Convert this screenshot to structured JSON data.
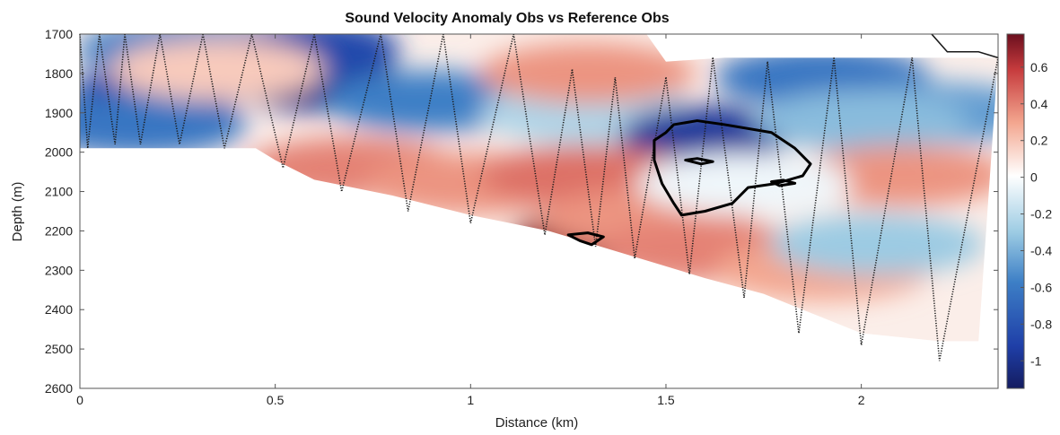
{
  "chart_data": {
    "type": "heatmap",
    "title": "Sound Velocity Anomaly Obs vs Reference Obs",
    "xlabel": "Distance (km)",
    "ylabel": "Depth (m)",
    "xlim": [
      0,
      2.35
    ],
    "ylim": [
      1700,
      2600
    ],
    "y_reversed": true,
    "x_ticks": [
      "0",
      "0.5",
      "1",
      "1.5",
      "2"
    ],
    "x_tick_values": [
      0,
      0.5,
      1,
      1.5,
      2
    ],
    "y_ticks": [
      "1700",
      "1800",
      "1900",
      "2000",
      "2100",
      "2200",
      "2300",
      "2400",
      "2500",
      "2600"
    ],
    "y_tick_values": [
      1700,
      1800,
      1900,
      2000,
      2100,
      2200,
      2300,
      2400,
      2500,
      2600
    ],
    "colorbar": {
      "colormap": "blue-white-red",
      "range": [
        -1.15,
        0.78
      ],
      "tick_values": [
        0.6,
        0.4,
        0.2,
        0,
        -0.2,
        -0.4,
        -0.6,
        -0.8,
        -1
      ],
      "tick_labels": [
        "0.6",
        "0.4",
        "0.2",
        "0",
        "-0.2",
        "-0.4",
        "-0.6",
        "-0.8",
        "-1"
      ],
      "colors": {
        "low": "#141c60",
        "mid": "#ffffff",
        "high": "#6b0f1e"
      }
    },
    "data_floor": [
      [
        0,
        1990
      ],
      [
        0.25,
        1990
      ],
      [
        0.45,
        1990
      ],
      [
        0.5,
        2020
      ],
      [
        0.6,
        2070
      ],
      [
        0.8,
        2110
      ],
      [
        1.0,
        2160
      ],
      [
        1.2,
        2200
      ],
      [
        1.4,
        2260
      ],
      [
        1.6,
        2320
      ],
      [
        1.75,
        2360
      ],
      [
        1.9,
        2420
      ],
      [
        2.0,
        2460
      ],
      [
        2.2,
        2480
      ],
      [
        2.3,
        2480
      ]
    ],
    "data_ceiling": [
      [
        0,
        1700
      ],
      [
        1.45,
        1700
      ],
      [
        1.5,
        1770
      ],
      [
        1.65,
        1760
      ],
      [
        2.0,
        1760
      ],
      [
        2.2,
        1760
      ],
      [
        2.35,
        1760
      ]
    ],
    "anomaly_features": [
      {
        "x": 0.27,
        "y": 1740,
        "value": -0.55
      },
      {
        "x": 0.6,
        "y": 1820,
        "value": -1.0
      },
      {
        "x": 0.2,
        "y": 1850,
        "value": -0.9
      },
      {
        "x": 0.6,
        "y": 1740,
        "value": -0.85
      },
      {
        "x": 0.9,
        "y": 1870,
        "value": -0.55
      },
      {
        "x": 0.15,
        "y": 1930,
        "value": -0.6
      },
      {
        "x": 1.3,
        "y": 1900,
        "value": -0.25
      },
      {
        "x": 1.6,
        "y": 1960,
        "value": -0.95
      },
      {
        "x": 1.9,
        "y": 1810,
        "value": -0.6
      },
      {
        "x": 2.2,
        "y": 1900,
        "value": -0.45
      },
      {
        "x": 2.0,
        "y": 1920,
        "value": -0.35
      },
      {
        "x": 1.3,
        "y": 1800,
        "value": 0.3
      },
      {
        "x": 0.35,
        "y": 1790,
        "value": 0.15
      },
      {
        "x": 0.7,
        "y": 2040,
        "value": 0.35
      },
      {
        "x": 1.0,
        "y": 2080,
        "value": 0.3
      },
      {
        "x": 1.3,
        "y": 2060,
        "value": 0.4
      },
      {
        "x": 1.32,
        "y": 2225,
        "value": 0.7
      },
      {
        "x": 1.45,
        "y": 2170,
        "value": 0.3
      },
      {
        "x": 1.6,
        "y": 2250,
        "value": 0.35
      },
      {
        "x": 2.1,
        "y": 2060,
        "value": 0.3
      },
      {
        "x": 1.9,
        "y": 2300,
        "value": 0.25
      },
      {
        "x": 1.7,
        "y": 2080,
        "value": -0.05
      },
      {
        "x": 2.04,
        "y": 2235,
        "value": -0.3
      }
    ],
    "contours": [
      {
        "name": "large",
        "points": [
          [
            1.52,
            1930
          ],
          [
            1.58,
            1920
          ],
          [
            1.65,
            1930
          ],
          [
            1.77,
            1950
          ],
          [
            1.83,
            1990
          ],
          [
            1.87,
            2030
          ],
          [
            1.85,
            2060
          ],
          [
            1.78,
            2080
          ],
          [
            1.71,
            2090
          ],
          [
            1.67,
            2130
          ],
          [
            1.6,
            2150
          ],
          [
            1.54,
            2160
          ],
          [
            1.52,
            2130
          ],
          [
            1.49,
            2080
          ],
          [
            1.47,
            2020
          ],
          [
            1.47,
            1970
          ],
          [
            1.5,
            1950
          ]
        ]
      },
      {
        "name": "inner-1",
        "points": [
          [
            1.55,
            2020
          ],
          [
            1.58,
            2016
          ],
          [
            1.62,
            2024
          ],
          [
            1.59,
            2030
          ]
        ]
      },
      {
        "name": "inner-2",
        "points": [
          [
            1.77,
            2075
          ],
          [
            1.8,
            2071
          ],
          [
            1.83,
            2079
          ],
          [
            1.79,
            2085
          ]
        ]
      },
      {
        "name": "bottom",
        "points": [
          [
            1.25,
            2210
          ],
          [
            1.3,
            2205
          ],
          [
            1.34,
            2215
          ],
          [
            1.31,
            2235
          ],
          [
            1.28,
            2225
          ]
        ]
      }
    ],
    "profiles": [
      {
        "x_top": 0.0,
        "y_top": 1700,
        "x_bot": 0.02,
        "y_bot": 1990
      },
      {
        "x_top": 0.05,
        "y_top": 1700,
        "x_bot": 0.09,
        "y_bot": 1980
      },
      {
        "x_top": 0.115,
        "y_top": 1700,
        "x_bot": 0.155,
        "y_bot": 1980
      },
      {
        "x_top": 0.205,
        "y_top": 1700,
        "x_bot": 0.255,
        "y_bot": 1980
      },
      {
        "x_top": 0.315,
        "y_top": 1700,
        "x_bot": 0.37,
        "y_bot": 1990
      },
      {
        "x_top": 0.44,
        "y_top": 1700,
        "x_bot": 0.52,
        "y_bot": 2040
      },
      {
        "x_top": 0.6,
        "y_top": 1700,
        "x_bot": 0.67,
        "y_bot": 2100
      },
      {
        "x_top": 0.77,
        "y_top": 1700,
        "x_bot": 0.84,
        "y_bot": 2150
      },
      {
        "x_top": 0.93,
        "y_top": 1700,
        "x_bot": 1.0,
        "y_bot": 2180
      },
      {
        "x_top": 1.11,
        "y_top": 1700,
        "x_bot": 1.19,
        "y_bot": 2210
      },
      {
        "x_top": 1.26,
        "y_top": 1790,
        "x_bot": 1.32,
        "y_bot": 2240
      },
      {
        "x_top": 1.37,
        "y_top": 1810,
        "x_bot": 1.42,
        "y_bot": 2270
      },
      {
        "x_top": 1.5,
        "y_top": 1810,
        "x_bot": 1.56,
        "y_bot": 2310
      },
      {
        "x_top": 1.62,
        "y_top": 1760,
        "x_bot": 1.7,
        "y_bot": 2370
      },
      {
        "x_top": 1.76,
        "y_top": 1770,
        "x_bot": 1.84,
        "y_bot": 2460
      },
      {
        "x_top": 1.93,
        "y_top": 1760,
        "x_bot": 2.0,
        "y_bot": 2490
      },
      {
        "x_top": 2.13,
        "y_top": 1760,
        "x_bot": 2.2,
        "y_bot": 2530
      },
      {
        "x_top": 2.35,
        "y_top": 1760
      }
    ],
    "top_right_segment": [
      [
        2.18,
        1700
      ],
      [
        2.22,
        1745
      ],
      [
        2.3,
        1745
      ],
      [
        2.35,
        1760
      ]
    ]
  }
}
